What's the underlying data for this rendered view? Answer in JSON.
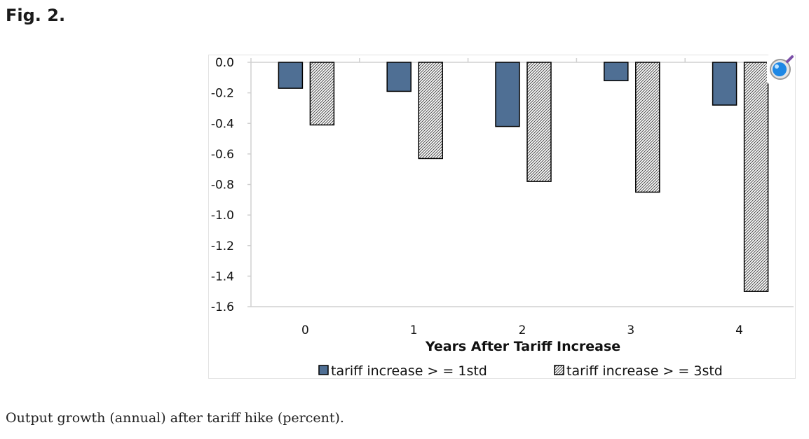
{
  "figure_label": "Fig. 2.",
  "caption": "Output growth (annual) after tariff hike (percent).",
  "icons": {
    "zoom": "magnifier-zoom-icon"
  },
  "colors": {
    "series_solid": "#4f6f94",
    "series_hatched": "#bfbfbf",
    "bar_outline": "#000000",
    "gridline": "#d0d0d0"
  },
  "chart_data": {
    "type": "bar",
    "title": "",
    "xlabel": "Years After Tariff Increase",
    "ylabel": "",
    "categories": [
      "0",
      "1",
      "2",
      "3",
      "4"
    ],
    "ylim": [
      -1.6,
      0.0
    ],
    "yticks": [
      "0.0",
      "-0.2",
      "-0.4",
      "-0.6",
      "-0.8",
      "-1.0",
      "-1.2",
      "-1.4",
      "-1.6"
    ],
    "grid": false,
    "legend_position": "bottom",
    "series": [
      {
        "name": "tariff increase >= 1std",
        "values": [
          -0.17,
          -0.19,
          -0.42,
          -0.12,
          -0.28
        ],
        "fill": "solid"
      },
      {
        "name": "tariff increase >= 3std",
        "values": [
          -0.41,
          -0.63,
          -0.78,
          -0.85,
          -1.5
        ],
        "fill": "hatched"
      }
    ],
    "legend": [
      {
        "label": "tariff increase > = 1std"
      },
      {
        "label": "tariff increase > = 3std"
      }
    ]
  }
}
